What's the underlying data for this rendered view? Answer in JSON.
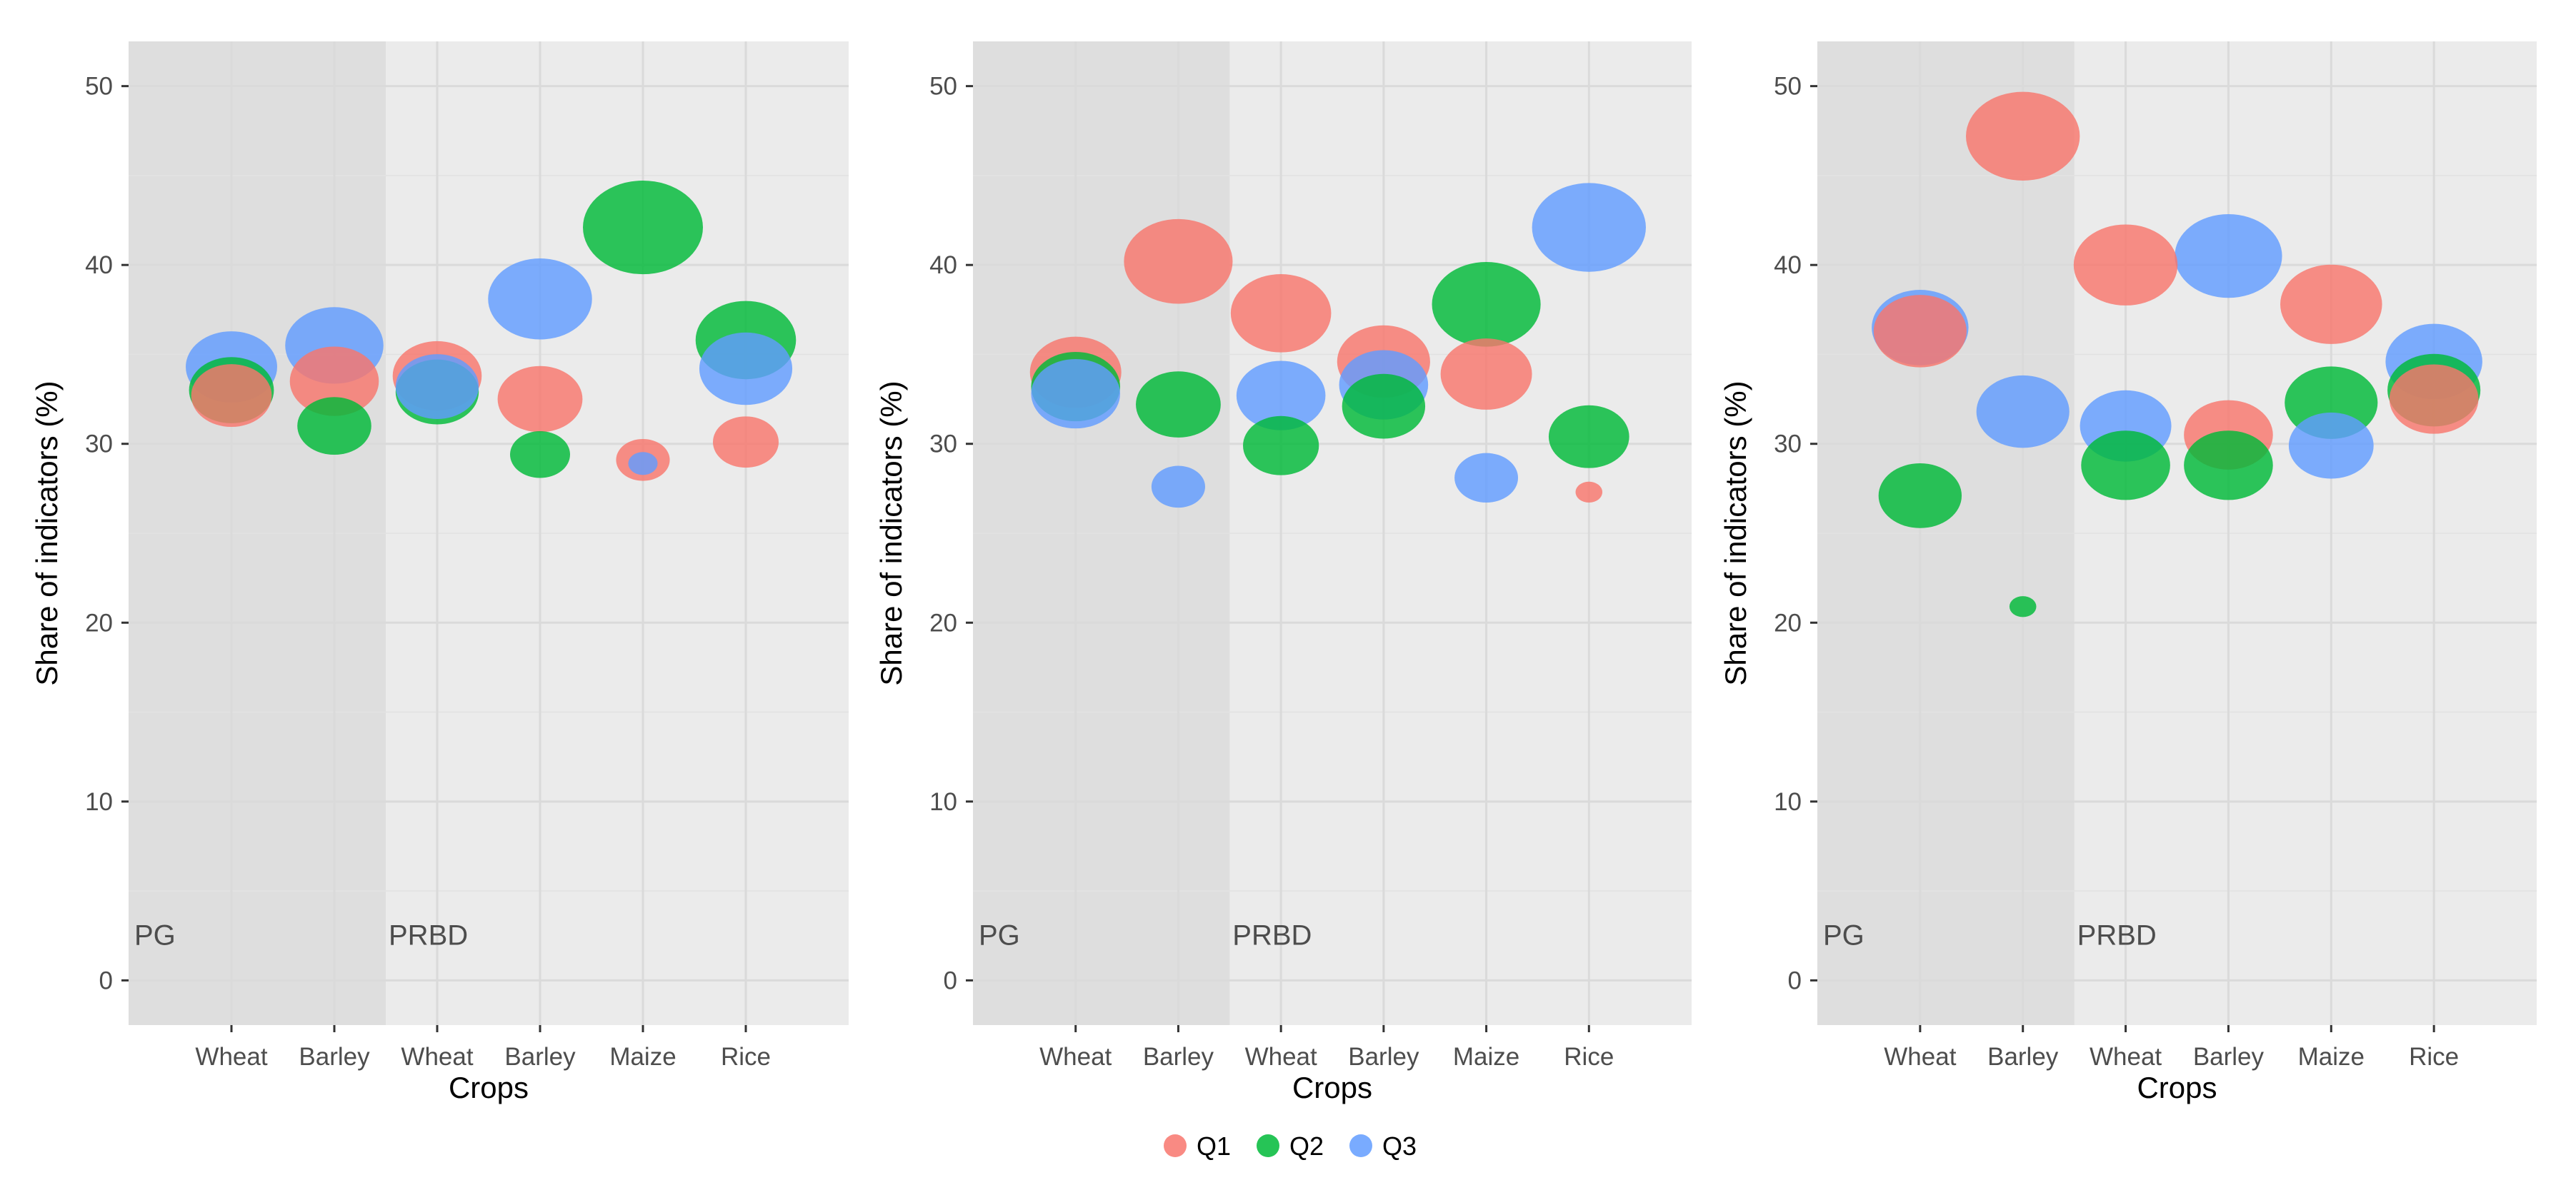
{
  "colors": {
    "Q1": "#F8766D",
    "Q2": "#00BA38",
    "Q3": "#619CFF"
  },
  "legend": [
    {
      "label": "Q1",
      "color": "#F8766D"
    },
    {
      "label": "Q2",
      "color": "#00BA38"
    },
    {
      "label": "Q3",
      "color": "#619CFF"
    }
  ],
  "chart_data": [
    {
      "type": "scatter",
      "subtype": "bubble",
      "title": "",
      "xlabel": "Crops",
      "ylabel": "Share of indicators (%)",
      "ylim": [
        -2.5,
        52.5
      ],
      "yticks": [
        0,
        10,
        20,
        30,
        40,
        50
      ],
      "categories": [
        "Wheat",
        "Barley",
        "Wheat",
        "Barley",
        "Maize",
        "Rice"
      ],
      "group_labels": [
        {
          "label": "PG",
          "start_index": 0
        },
        {
          "label": "PRBD",
          "start_index": 2
        }
      ],
      "shaded_categories": [
        0,
        1
      ],
      "series": [
        {
          "name": "Q1",
          "values": [
            32.7,
            33.5,
            33.8,
            32.5,
            29.1,
            30.1
          ],
          "sizes": [
            0.45,
            0.55,
            0.55,
            0.5,
            0.2,
            0.3
          ]
        },
        {
          "name": "Q2",
          "values": [
            33.0,
            31.0,
            32.9,
            29.4,
            42.1,
            35.8
          ],
          "sizes": [
            0.5,
            0.38,
            0.48,
            0.25,
            1.0,
            0.7
          ]
        },
        {
          "name": "Q3",
          "values": [
            34.3,
            35.5,
            33.2,
            38.1,
            28.9,
            34.2
          ],
          "sizes": [
            0.58,
            0.67,
            0.48,
            0.75,
            0.06,
            0.6
          ]
        }
      ]
    },
    {
      "type": "scatter",
      "subtype": "bubble",
      "title": "",
      "xlabel": "Crops",
      "ylabel": "Share of indicators (%)",
      "ylim": [
        -2.5,
        52.5
      ],
      "yticks": [
        0,
        10,
        20,
        30,
        40,
        50
      ],
      "categories": [
        "Wheat",
        "Barley",
        "Wheat",
        "Barley",
        "Maize",
        "Rice"
      ],
      "group_labels": [
        {
          "label": "PG",
          "start_index": 0
        },
        {
          "label": "PRBD",
          "start_index": 2
        }
      ],
      "shaded_categories": [
        0,
        1
      ],
      "series": [
        {
          "name": "Q1",
          "values": [
            34.0,
            40.2,
            37.3,
            34.6,
            33.9,
            27.3
          ],
          "sizes": [
            0.58,
            0.82,
            0.7,
            0.6,
            0.58,
            0.05
          ]
        },
        {
          "name": "Q2",
          "values": [
            33.2,
            32.2,
            29.9,
            32.1,
            37.8,
            30.4
          ],
          "sizes": [
            0.55,
            0.5,
            0.4,
            0.48,
            0.82,
            0.45
          ]
        },
        {
          "name": "Q3",
          "values": [
            32.8,
            27.6,
            32.7,
            33.3,
            28.1,
            42.1
          ],
          "sizes": [
            0.55,
            0.2,
            0.55,
            0.55,
            0.28,
            0.9
          ]
        }
      ]
    },
    {
      "type": "scatter",
      "subtype": "bubble",
      "title": "",
      "xlabel": "Crops",
      "ylabel": "Share of indicators (%)",
      "ylim": [
        -2.5,
        52.5
      ],
      "yticks": [
        0,
        10,
        20,
        30,
        40,
        50
      ],
      "categories": [
        "Wheat",
        "Barley",
        "Wheat",
        "Barley",
        "Maize",
        "Rice"
      ],
      "group_labels": [
        {
          "label": "PG",
          "start_index": 0
        },
        {
          "label": "PRBD",
          "start_index": 2
        }
      ],
      "shaded_categories": [
        0,
        1
      ],
      "series": [
        {
          "name": "Q1",
          "values": [
            36.3,
            47.2,
            40.0,
            30.5,
            37.8,
            32.5
          ],
          "sizes": [
            0.6,
            0.9,
            0.75,
            0.55,
            0.72,
            0.55
          ]
        },
        {
          "name": "Q2",
          "values": [
            27.1,
            20.9,
            28.8,
            28.8,
            32.3,
            33.0
          ],
          "sizes": [
            0.48,
            0.05,
            0.55,
            0.55,
            0.6,
            0.6
          ]
        },
        {
          "name": "Q3",
          "values": [
            36.5,
            31.8,
            31.0,
            40.5,
            29.9,
            34.6
          ],
          "sizes": [
            0.65,
            0.6,
            0.58,
            0.8,
            0.5,
            0.65
          ]
        }
      ]
    }
  ]
}
